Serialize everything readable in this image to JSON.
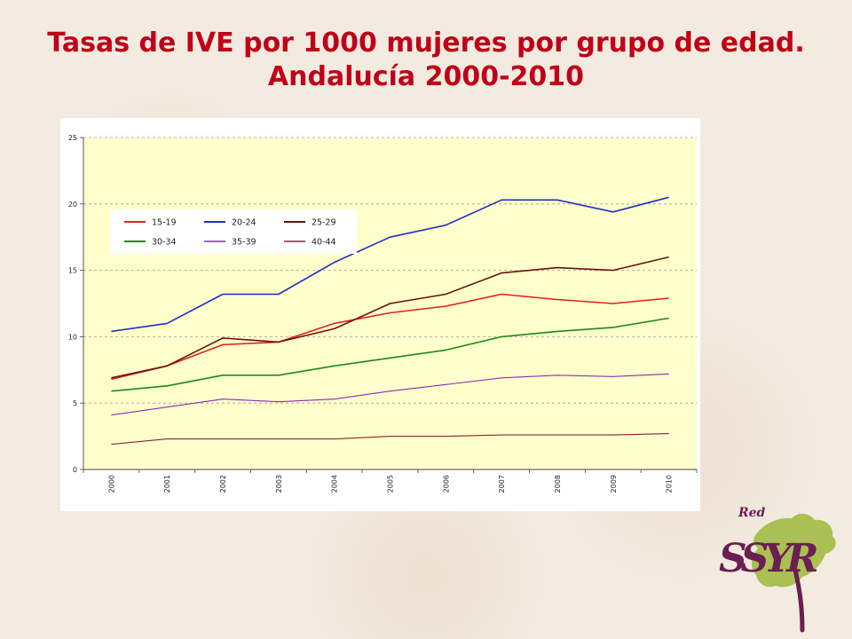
{
  "title": "Tasas de IVE por 1000 mujeres  por grupo de edad. Andalucía 2000-2010",
  "logo": {
    "small_text": "Red",
    "main_text": "SSYR"
  },
  "colors": {
    "plot_background": "#ffffcc",
    "chart_background": "#ffffff",
    "gridline": "#a0a0a0",
    "title": "#c00018"
  },
  "chart_data": {
    "type": "line",
    "title": "",
    "xlabel": "",
    "ylabel": "",
    "ylim": [
      0,
      25
    ],
    "yticks": [
      0,
      5,
      10,
      15,
      20,
      25
    ],
    "grid": "horizontal dashed",
    "legend_position": "top-left inside plot",
    "categories": [
      "2000",
      "2001",
      "2002",
      "2003",
      "2004",
      "2005",
      "2006",
      "2007",
      "2008",
      "2009",
      "2010"
    ],
    "series": [
      {
        "name": "15-19",
        "color": "#e0201b",
        "width": 1.6,
        "values": [
          6.8,
          7.8,
          9.4,
          9.6,
          11.0,
          11.8,
          12.3,
          13.2,
          12.8,
          12.5,
          12.9
        ]
      },
      {
        "name": "20-24",
        "color": "#1e2ec8",
        "width": 1.6,
        "values": [
          10.4,
          11.0,
          13.2,
          13.2,
          15.6,
          17.5,
          18.4,
          20.3,
          20.3,
          19.4,
          20.5
        ]
      },
      {
        "name": "25-29",
        "color": "#6a1010",
        "width": 1.6,
        "values": [
          6.9,
          7.8,
          9.9,
          9.6,
          10.6,
          12.5,
          13.2,
          14.8,
          15.2,
          15.0,
          16.0
        ]
      },
      {
        "name": "30-34",
        "color": "#1a8a1a",
        "width": 1.6,
        "values": [
          5.9,
          6.3,
          7.1,
          7.1,
          7.8,
          8.4,
          9.0,
          10.0,
          10.4,
          10.7,
          11.4
        ]
      },
      {
        "name": "35-39",
        "color": "#8a2bb0",
        "width": 1.1,
        "values": [
          4.1,
          4.7,
          5.3,
          5.1,
          5.3,
          5.9,
          6.4,
          6.9,
          7.1,
          7.0,
          7.2
        ]
      },
      {
        "name": "40-44",
        "color": "#8a2040",
        "width": 1.1,
        "values": [
          1.9,
          2.3,
          2.3,
          2.3,
          2.3,
          2.5,
          2.5,
          2.6,
          2.6,
          2.6,
          2.7
        ]
      }
    ]
  }
}
